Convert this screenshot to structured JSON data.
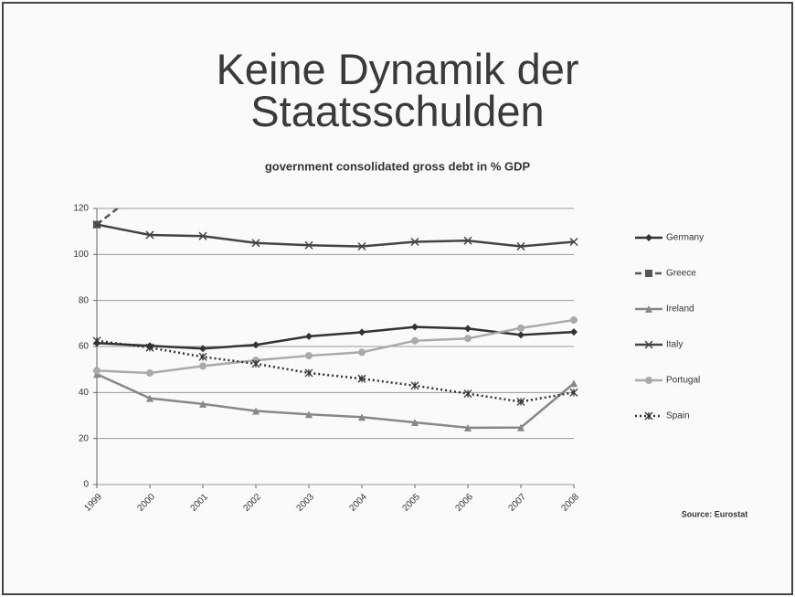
{
  "chart_data": {
    "type": "line",
    "title": "Keine Dynamik der Staatsschulden",
    "subtitle": "government consolidated gross debt in % GDP",
    "source": "Source: Eurostat",
    "categories": [
      "1999",
      "2000",
      "2001",
      "2002",
      "2003",
      "2004",
      "2005",
      "2006",
      "2007",
      "2008"
    ],
    "ylim": [
      0,
      120
    ],
    "yticks": [
      0,
      20,
      40,
      60,
      80,
      100,
      120
    ],
    "grid": true,
    "legend": "right",
    "series": [
      {
        "name": "Germany",
        "color": "#333333",
        "marker": "diamond",
        "dash": "solid",
        "values": [
          61.5,
          60.3,
          59.1,
          60.7,
          64.4,
          66.2,
          68.5,
          67.8,
          65.0,
          66.3
        ]
      },
      {
        "name": "Greece",
        "color": "#555555",
        "marker": "square",
        "dash": "dashed",
        "values": [
          113,
          131,
          null,
          null,
          null,
          null,
          null,
          null,
          null,
          null
        ]
      },
      {
        "name": "Ireland",
        "color": "#888888",
        "marker": "triangle",
        "dash": "solid",
        "values": [
          48,
          37.5,
          35,
          32,
          30.5,
          29.3,
          27,
          24.7,
          24.8,
          44
        ]
      },
      {
        "name": "Italy",
        "color": "#444444",
        "marker": "x",
        "dash": "solid",
        "values": [
          113,
          108.5,
          108,
          105,
          104,
          103.5,
          105.5,
          106,
          103.5,
          105.5
        ]
      },
      {
        "name": "Portugal",
        "color": "#aaaaaa",
        "marker": "circle",
        "dash": "solid",
        "values": [
          49.5,
          48.5,
          51.5,
          54,
          56,
          57.5,
          62.5,
          63.5,
          68,
          71.5
        ]
      },
      {
        "name": "Spain",
        "color": "#333333",
        "marker": "star",
        "dash": "dotted",
        "values": [
          62.5,
          59.5,
          55.5,
          52.5,
          48.5,
          46,
          43,
          39.5,
          36,
          40
        ]
      }
    ]
  }
}
